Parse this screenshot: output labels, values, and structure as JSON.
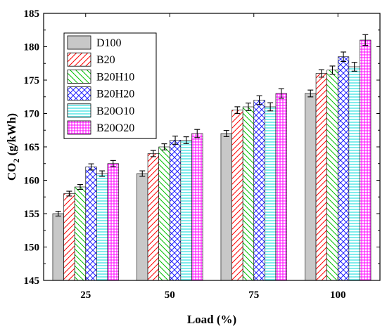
{
  "chart_data": {
    "type": "bar",
    "xlabel": "Load (%)",
    "ylabel": "CO",
    "ylabel_subscript": "2",
    "ylabel_unit": " (g/kWh)",
    "categories": [
      "25",
      "50",
      "75",
      "100"
    ],
    "ylim": [
      145,
      185
    ],
    "yticks": [
      145,
      150,
      155,
      160,
      165,
      170,
      175,
      180,
      185
    ],
    "grid": false,
    "legend_position": "top-left",
    "error_bars": true,
    "series": [
      {
        "name": "D100",
        "values": [
          155.0,
          161.0,
          167.0,
          173.0
        ],
        "errors": [
          0.15,
          0.2,
          0.25,
          0.3
        ],
        "color": "#c8c8c8",
        "pattern": "solid"
      },
      {
        "name": "B20",
        "values": [
          158.0,
          164.0,
          170.5,
          176.0
        ],
        "errors": [
          0.15,
          0.25,
          0.3,
          0.35
        ],
        "color": "#ff0000",
        "pattern": "diag-up"
      },
      {
        "name": "B20H10",
        "values": [
          159.0,
          165.0,
          171.0,
          176.5
        ],
        "errors": [
          0.15,
          0.25,
          0.35,
          0.4
        ],
        "color": "#00c000",
        "pattern": "diag-down"
      },
      {
        "name": "B20H20",
        "values": [
          162.0,
          166.0,
          172.0,
          178.5
        ],
        "errors": [
          0.25,
          0.4,
          0.45,
          0.5
        ],
        "color": "#2020ff",
        "pattern": "cross"
      },
      {
        "name": "B20O10",
        "values": [
          161.0,
          166.0,
          171.0,
          177.0
        ],
        "errors": [
          0.2,
          0.3,
          0.4,
          0.45
        ],
        "color": "#00d8d8",
        "pattern": "horizontal"
      },
      {
        "name": "B20O20",
        "values": [
          162.5,
          167.0,
          173.0,
          181.0
        ],
        "errors": [
          0.25,
          0.4,
          0.5,
          0.6
        ],
        "color": "#ff00ff",
        "pattern": "grid"
      }
    ]
  }
}
